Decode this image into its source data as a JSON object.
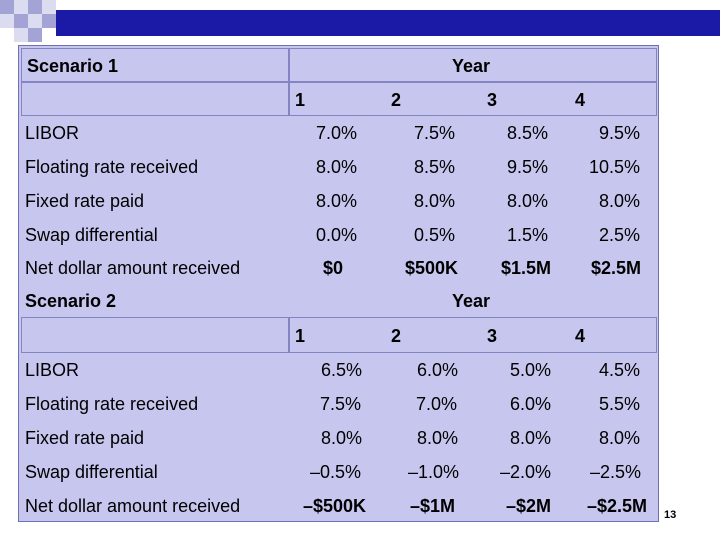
{
  "page_number": "13",
  "colors": {
    "table_bg": "#c6c6ee",
    "band": "#1a1aa6",
    "deco_a": "#a3a3d6",
    "deco_b": "#dcdcf1"
  },
  "scenario1": {
    "title": "Scenario 1",
    "year_label": "Year",
    "years": [
      "1",
      "2",
      "3",
      "4"
    ],
    "rows": [
      {
        "label": "LIBOR",
        "values": [
          "7.0%",
          "7.5%",
          "8.5%",
          "9.5%"
        ]
      },
      {
        "label": "Floating rate received",
        "values": [
          "8.0%",
          "8.5%",
          "9.5%",
          "10.5%"
        ]
      },
      {
        "label": "Fixed rate paid",
        "values": [
          "8.0%",
          "8.0%",
          "8.0%",
          "8.0%"
        ]
      },
      {
        "label": "Swap differential",
        "values": [
          "0.0%",
          "0.5%",
          "1.5%",
          "2.5%"
        ]
      },
      {
        "label": "Net dollar amount received",
        "values": [
          "$0",
          "$500K",
          "$1.5M",
          "$2.5M"
        ]
      }
    ]
  },
  "scenario2": {
    "title": "Scenario 2",
    "year_label": "Year",
    "years": [
      "1",
      "2",
      "3",
      "4"
    ],
    "rows": [
      {
        "label": "LIBOR",
        "values": [
          "6.5%",
          "6.0%",
          "5.0%",
          "4.5%"
        ]
      },
      {
        "label": "Floating rate received",
        "values": [
          "7.5%",
          "7.0%",
          "6.0%",
          "5.5%"
        ]
      },
      {
        "label": "Fixed rate paid",
        "values": [
          "8.0%",
          "8.0%",
          "8.0%",
          "8.0%"
        ]
      },
      {
        "label": "Swap differential",
        "values": [
          "–0.5%",
          "–1.0%",
          "–2.0%",
          "–2.5%"
        ]
      },
      {
        "label": "Net dollar amount received",
        "values": [
          "–$500K",
          "–$1M",
          "–$2M",
          "–$2.5M"
        ]
      }
    ]
  }
}
